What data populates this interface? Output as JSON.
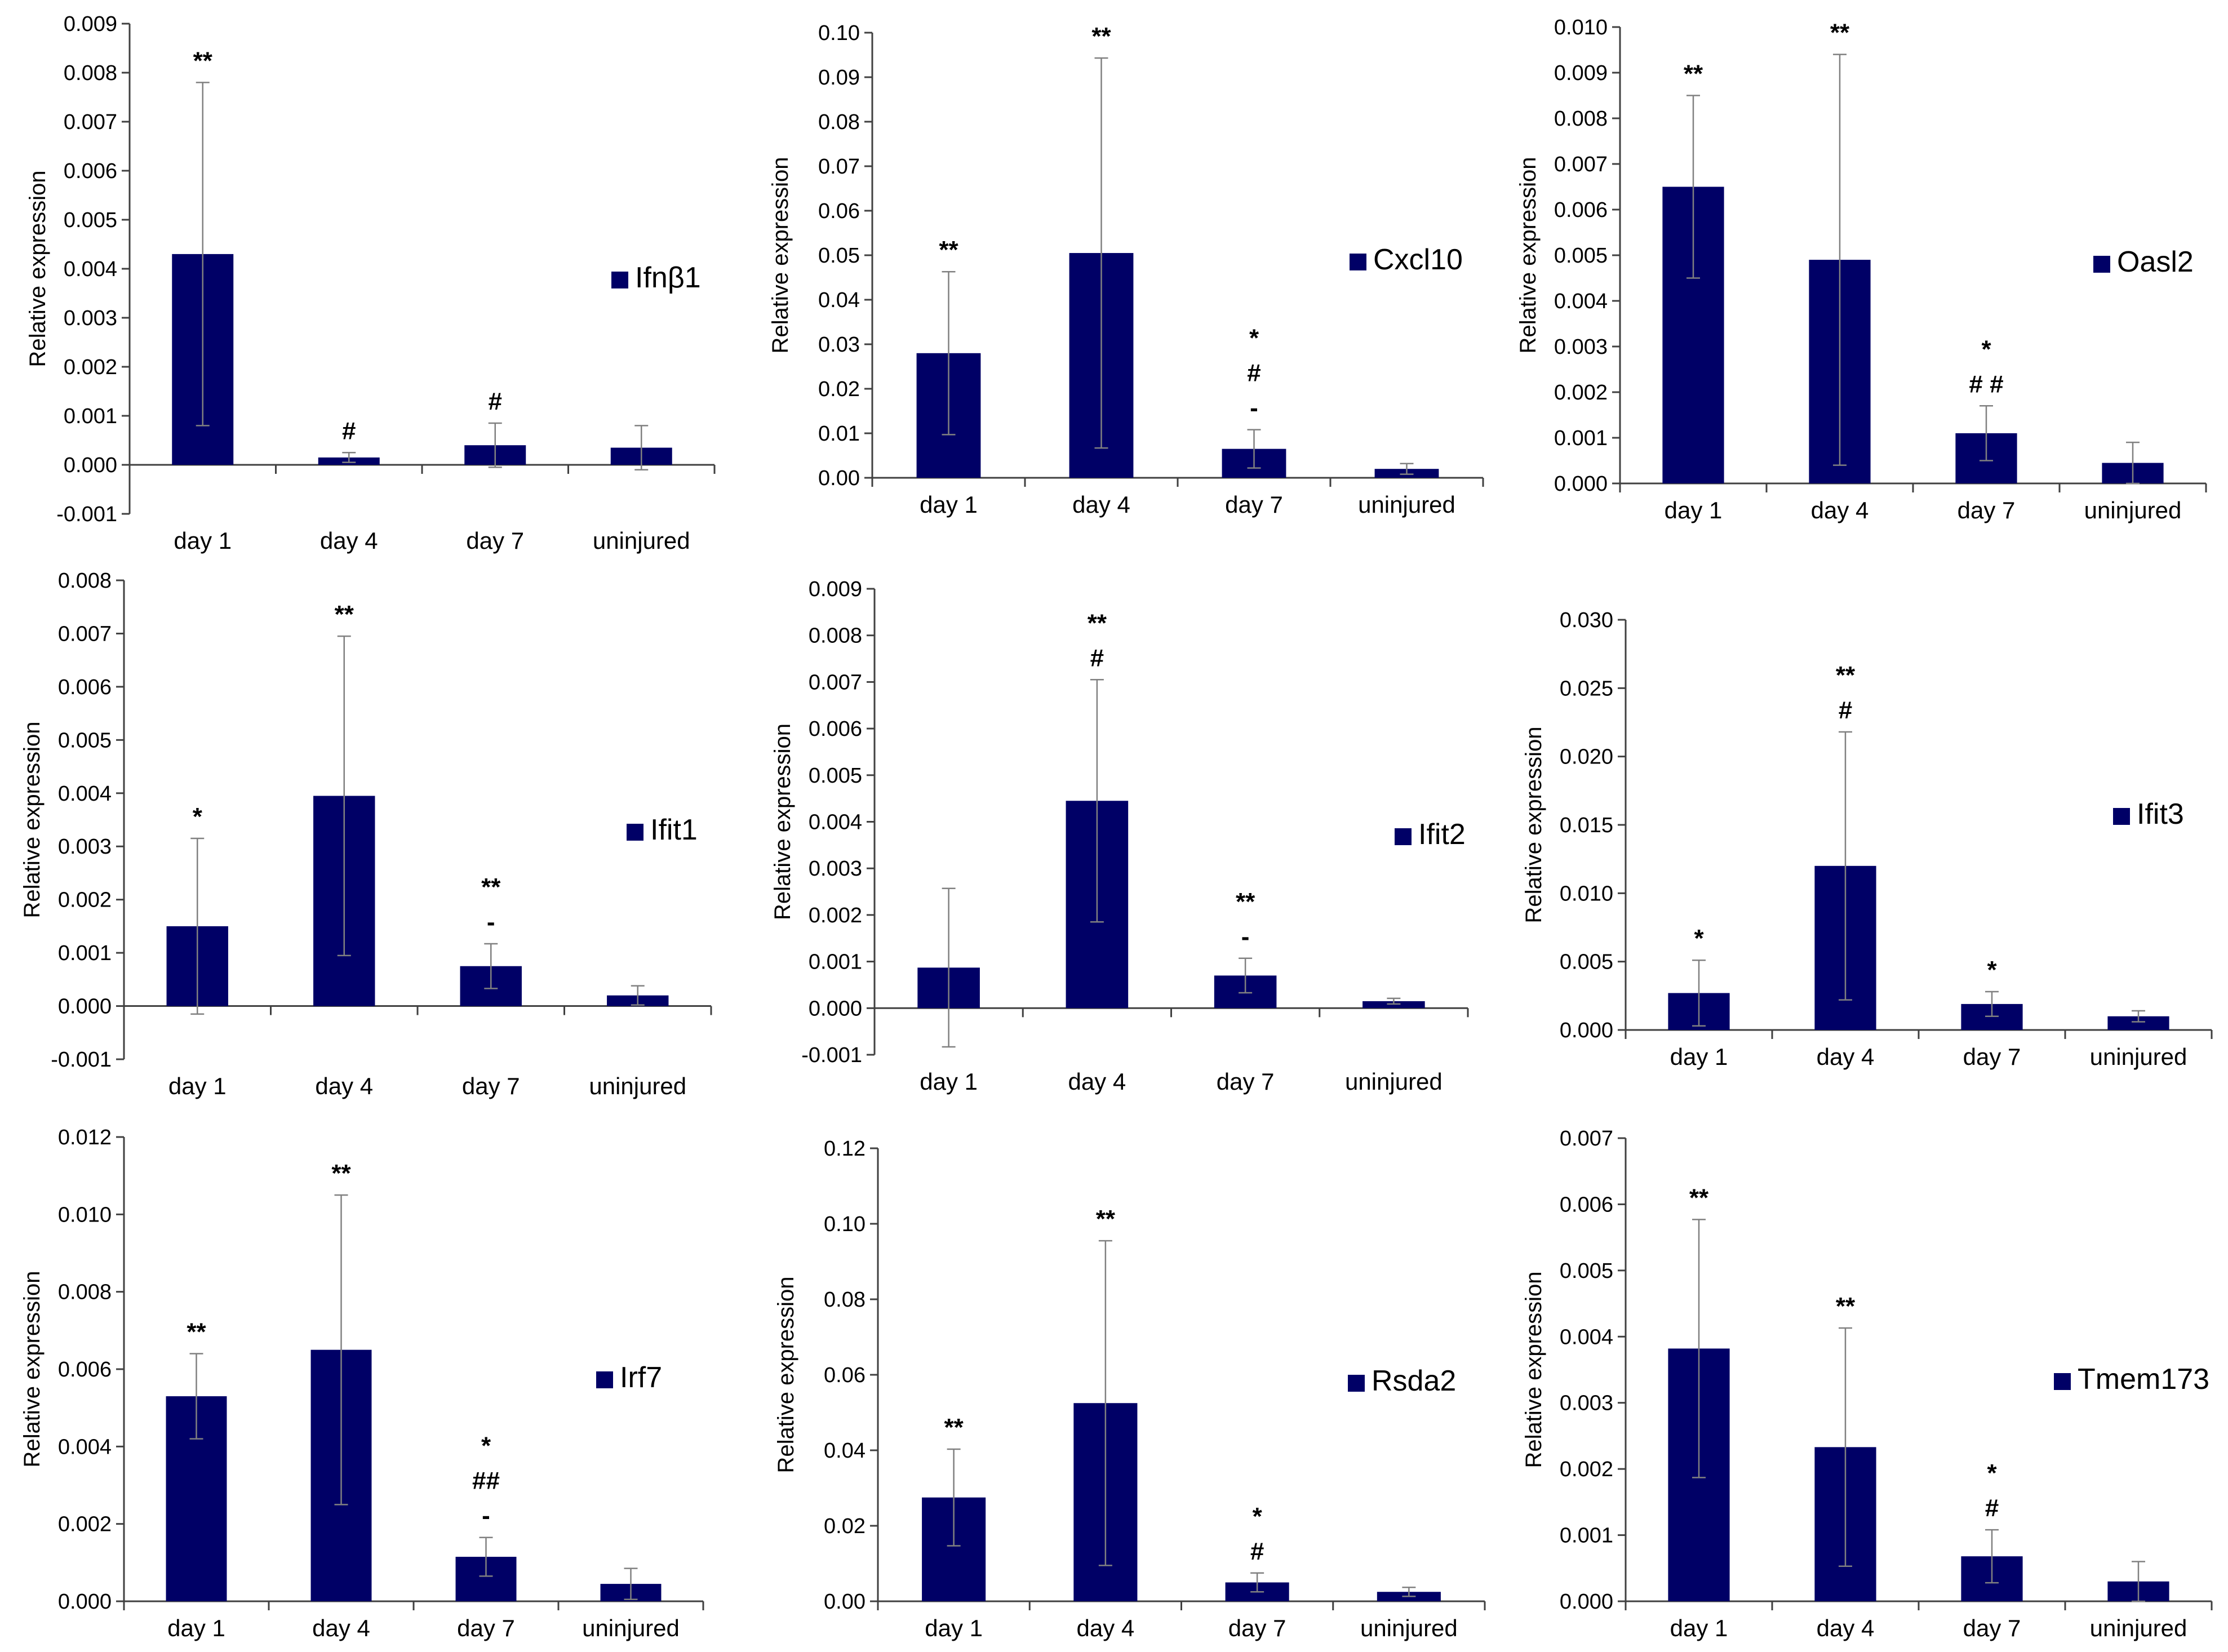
{
  "colors": {
    "bar": "#000066",
    "axis": "#404040",
    "errorbar": "#808080",
    "background": "#ffffff"
  },
  "chart_data": [
    {
      "type": "bar",
      "series_name": "Ifnβ1",
      "categories": [
        "day 1",
        "day 4",
        "day 7",
        "uninjured"
      ],
      "values": [
        0.0043,
        0.00015,
        0.0004,
        0.00035
      ],
      "errors": [
        0.0035,
        0.0001,
        0.00045,
        0.00045
      ],
      "significance": [
        [
          "**"
        ],
        [
          "#"
        ],
        [
          "#"
        ],
        []
      ],
      "ylabel": "Relative expression",
      "ylim": [
        -0.001,
        0.009
      ],
      "yticks": [
        -0.001,
        0,
        0.001,
        0.002,
        0.003,
        0.004,
        0.005,
        0.006,
        0.007,
        0.008,
        0.009
      ],
      "ytick_labels": [
        "-0.001",
        "0.000",
        "0.001",
        "0.002",
        "0.003",
        "0.004",
        "0.005",
        "0.006",
        "0.007",
        "0.008",
        "0.009"
      ],
      "legend": "Ifnβ1"
    },
    {
      "type": "bar",
      "series_name": "Cxcl10",
      "categories": [
        "day 1",
        "day 4",
        "day 7",
        "uninjured"
      ],
      "values": [
        0.028,
        0.0505,
        0.0065,
        0.002
      ],
      "errors": [
        0.0183,
        0.0438,
        0.0043,
        0.0012
      ],
      "significance": [
        [
          "**"
        ],
        [
          "**"
        ],
        [
          "*",
          "#",
          "-"
        ],
        []
      ],
      "ylabel": "Relative expression",
      "ylim": [
        0,
        0.1
      ],
      "yticks": [
        0,
        0.01,
        0.02,
        0.03,
        0.04,
        0.05,
        0.06,
        0.07,
        0.08,
        0.09,
        0.1
      ],
      "ytick_labels": [
        "0.00",
        "0.01",
        "0.02",
        "0.03",
        "0.04",
        "0.05",
        "0.06",
        "0.07",
        "0.08",
        "0.09",
        "0.10"
      ],
      "legend": "Cxcl10"
    },
    {
      "type": "bar",
      "series_name": "Oasl2",
      "categories": [
        "day 1",
        "day 4",
        "day 7",
        "uninjured"
      ],
      "values": [
        0.0065,
        0.0049,
        0.0011,
        0.00045
      ],
      "errors": [
        0.002,
        0.0045,
        0.0006,
        0.00045
      ],
      "significance": [
        [
          "**"
        ],
        [
          "**"
        ],
        [
          "*",
          "# #"
        ],
        []
      ],
      "ylabel": "Relative expression",
      "ylim": [
        0,
        0.01
      ],
      "yticks": [
        0,
        0.001,
        0.002,
        0.003,
        0.004,
        0.005,
        0.006,
        0.007,
        0.008,
        0.009,
        0.01
      ],
      "ytick_labels": [
        "0.000",
        "0.001",
        "0.002",
        "0.003",
        "0.004",
        "0.005",
        "0.006",
        "0.007",
        "0.008",
        "0.009",
        "0.010"
      ],
      "legend": "Oasl2"
    },
    {
      "type": "bar",
      "series_name": "Ifit1",
      "categories": [
        "day 1",
        "day 4",
        "day 7",
        "uninjured"
      ],
      "values": [
        0.0015,
        0.00395,
        0.00075,
        0.0002
      ],
      "errors": [
        0.00165,
        0.003,
        0.00042,
        0.00018
      ],
      "significance": [
        [
          "*"
        ],
        [
          "**"
        ],
        [
          "**",
          "-"
        ],
        []
      ],
      "ylabel": "Relative expression",
      "ylim": [
        -0.001,
        0.008
      ],
      "yticks": [
        -0.001,
        0,
        0.001,
        0.002,
        0.003,
        0.004,
        0.005,
        0.006,
        0.007,
        0.008
      ],
      "ytick_labels": [
        "-0.001",
        "0.000",
        "0.001",
        "0.002",
        "0.003",
        "0.004",
        "0.005",
        "0.006",
        "0.007",
        "0.008"
      ],
      "legend": "Ifit1"
    },
    {
      "type": "bar",
      "series_name": "Ifit2",
      "categories": [
        "day 1",
        "day 4",
        "day 7",
        "uninjured"
      ],
      "values": [
        0.00087,
        0.00445,
        0.0007,
        0.00015
      ],
      "errors": [
        0.0017,
        0.0026,
        0.00037,
        6e-05
      ],
      "significance": [
        [],
        [
          "**",
          "#"
        ],
        [
          "**",
          "-"
        ],
        []
      ],
      "ylabel": "Relative expression",
      "ylim": [
        -0.001,
        0.009
      ],
      "yticks": [
        -0.001,
        0,
        0.001,
        0.002,
        0.003,
        0.004,
        0.005,
        0.006,
        0.007,
        0.008,
        0.009
      ],
      "ytick_labels": [
        "-0.001",
        "0.000",
        "0.001",
        "0.002",
        "0.003",
        "0.004",
        "0.005",
        "0.006",
        "0.007",
        "0.008",
        "0.009"
      ],
      "legend": "Ifit2"
    },
    {
      "type": "bar",
      "series_name": "Ifit3",
      "categories": [
        "day 1",
        "day 4",
        "day 7",
        "uninjured"
      ],
      "values": [
        0.0027,
        0.012,
        0.0019,
        0.001
      ],
      "errors": [
        0.0024,
        0.0098,
        0.0009,
        0.0004
      ],
      "significance": [
        [
          "*"
        ],
        [
          "**",
          "#"
        ],
        [
          "*"
        ],
        []
      ],
      "ylabel": "Relative expression",
      "ylim": [
        0,
        0.03
      ],
      "yticks": [
        0,
        0.005,
        0.01,
        0.015,
        0.02,
        0.025,
        0.03
      ],
      "ytick_labels": [
        "0.000",
        "0.005",
        "0.010",
        "0.015",
        "0.020",
        "0.025",
        "0.030"
      ],
      "legend": "Ifit3"
    },
    {
      "type": "bar",
      "series_name": "Irf7",
      "categories": [
        "day 1",
        "day 4",
        "day 7",
        "uninjured"
      ],
      "values": [
        0.0053,
        0.0065,
        0.00115,
        0.00045
      ],
      "errors": [
        0.0011,
        0.004,
        0.0005,
        0.0004
      ],
      "significance": [
        [
          "**"
        ],
        [
          "**"
        ],
        [
          "*",
          "##",
          "-"
        ],
        []
      ],
      "ylabel": "Relative expression",
      "ylim": [
        0,
        0.012
      ],
      "yticks": [
        0,
        0.002,
        0.004,
        0.006,
        0.008,
        0.01,
        0.012
      ],
      "ytick_labels": [
        "0.000",
        "0.002",
        "0.004",
        "0.006",
        "0.008",
        "0.010",
        "0.012"
      ],
      "legend": "Irf7"
    },
    {
      "type": "bar",
      "series_name": "Rsda2",
      "categories": [
        "day 1",
        "day 4",
        "day 7",
        "uninjured"
      ],
      "values": [
        0.0275,
        0.0525,
        0.005,
        0.0025
      ],
      "errors": [
        0.0128,
        0.043,
        0.0025,
        0.0012
      ],
      "significance": [
        [
          "**"
        ],
        [
          "**"
        ],
        [
          "*",
          "#"
        ],
        []
      ],
      "ylabel": "Relative expression",
      "ylim": [
        0,
        0.12
      ],
      "yticks": [
        0,
        0.02,
        0.04,
        0.06,
        0.08,
        0.1,
        0.12
      ],
      "ytick_labels": [
        "0.00",
        "0.02",
        "0.04",
        "0.06",
        "0.08",
        "0.10",
        "0.12"
      ],
      "legend": "Rsda2"
    },
    {
      "type": "bar",
      "series_name": "Tmem173",
      "categories": [
        "day 1",
        "day 4",
        "day 7",
        "uninjured"
      ],
      "values": [
        0.00382,
        0.00233,
        0.00068,
        0.0003
      ],
      "errors": [
        0.00195,
        0.0018,
        0.0004,
        0.0003
      ],
      "significance": [
        [
          "**"
        ],
        [
          "**"
        ],
        [
          "*",
          "#"
        ],
        []
      ],
      "ylabel": "Relative expression",
      "ylim": [
        0,
        0.007
      ],
      "yticks": [
        0,
        0.001,
        0.002,
        0.003,
        0.004,
        0.005,
        0.006,
        0.007
      ],
      "ytick_labels": [
        "0.000",
        "0.001",
        "0.002",
        "0.003",
        "0.004",
        "0.005",
        "0.006",
        "0.007"
      ],
      "legend": "Tmem173"
    }
  ]
}
